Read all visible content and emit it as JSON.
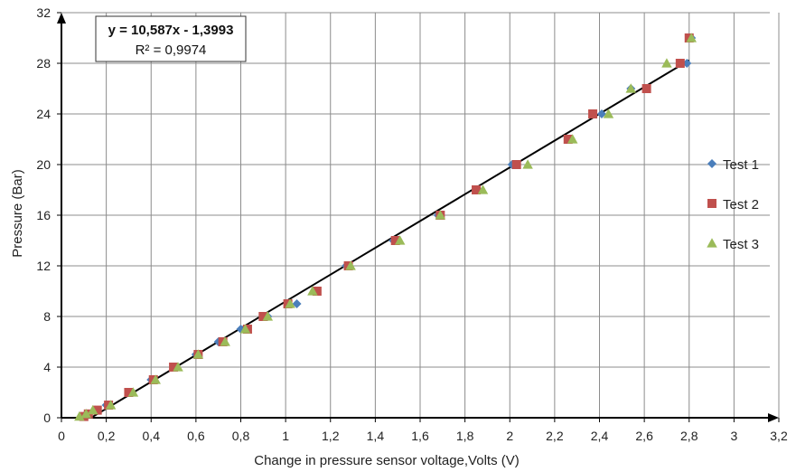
{
  "chart_data": {
    "type": "scatter",
    "title": "",
    "xlabel": "Change in pressure sensor voltage,Volts (V)",
    "ylabel": "Pressure (Bar)",
    "xlim": [
      0,
      3.2
    ],
    "ylim": [
      0,
      32
    ],
    "x_ticks": [
      0,
      0.2,
      0.4,
      0.6,
      0.8,
      1,
      1.2,
      1.4,
      1.6,
      1.8,
      2,
      2.2,
      2.4,
      2.6,
      2.8,
      3,
      3.2
    ],
    "x_tick_labels": [
      "0",
      "0,2",
      "0,4",
      "0,6",
      "0,8",
      "1",
      "1,2",
      "1,4",
      "1,6",
      "1,8",
      "2",
      "2,2",
      "2,4",
      "2,6",
      "2,8",
      "3",
      "3,2"
    ],
    "y_ticks": [
      0,
      4,
      8,
      12,
      16,
      20,
      24,
      28,
      32
    ],
    "y_tick_labels": [
      "0",
      "4",
      "8",
      "12",
      "16",
      "20",
      "24",
      "28",
      "32"
    ],
    "grid": true,
    "legend_position": "right",
    "series": [
      {
        "name": "Test 1",
        "marker": "diamond",
        "color": "#4a7ebb",
        "points": [
          [
            0.09,
            0.1
          ],
          [
            0.11,
            0.3
          ],
          [
            0.15,
            0.6
          ],
          [
            0.2,
            1
          ],
          [
            0.31,
            2
          ],
          [
            0.4,
            3
          ],
          [
            0.5,
            4
          ],
          [
            0.6,
            5
          ],
          [
            0.7,
            6
          ],
          [
            0.8,
            7
          ],
          [
            0.92,
            8
          ],
          [
            1.05,
            9
          ],
          [
            1.27,
            12
          ],
          [
            1.48,
            14
          ],
          [
            1.68,
            16
          ],
          [
            1.86,
            18
          ],
          [
            2.01,
            20
          ],
          [
            2.41,
            24
          ],
          [
            2.54,
            26
          ],
          [
            2.79,
            28
          ],
          [
            2.81,
            30
          ]
        ]
      },
      {
        "name": "Test 2",
        "marker": "square",
        "color": "#c0504d",
        "points": [
          [
            0.1,
            0.1
          ],
          [
            0.12,
            0.3
          ],
          [
            0.16,
            0.6
          ],
          [
            0.21,
            1
          ],
          [
            0.3,
            2
          ],
          [
            0.41,
            3
          ],
          [
            0.5,
            4
          ],
          [
            0.61,
            5
          ],
          [
            0.72,
            6
          ],
          [
            0.83,
            7
          ],
          [
            0.9,
            8
          ],
          [
            1.01,
            9
          ],
          [
            1.14,
            10
          ],
          [
            1.28,
            12
          ],
          [
            1.49,
            14
          ],
          [
            1.69,
            16
          ],
          [
            1.85,
            18
          ],
          [
            2.03,
            20
          ],
          [
            2.26,
            22
          ],
          [
            2.37,
            24
          ],
          [
            2.61,
            26
          ],
          [
            2.76,
            28
          ],
          [
            2.8,
            30
          ]
        ]
      },
      {
        "name": "Test 3",
        "marker": "triangle",
        "color": "#9bbb59",
        "points": [
          [
            0.08,
            0.1
          ],
          [
            0.11,
            0.3
          ],
          [
            0.14,
            0.6
          ],
          [
            0.22,
            1
          ],
          [
            0.32,
            2
          ],
          [
            0.42,
            3
          ],
          [
            0.52,
            4
          ],
          [
            0.61,
            5
          ],
          [
            0.73,
            6
          ],
          [
            0.82,
            7
          ],
          [
            0.92,
            8
          ],
          [
            1.02,
            9
          ],
          [
            1.12,
            10
          ],
          [
            1.29,
            12
          ],
          [
            1.51,
            14
          ],
          [
            1.69,
            16
          ],
          [
            1.88,
            18
          ],
          [
            2.08,
            20
          ],
          [
            2.28,
            22
          ],
          [
            2.44,
            24
          ],
          [
            2.54,
            26
          ],
          [
            2.7,
            28
          ],
          [
            2.81,
            30
          ]
        ]
      }
    ],
    "trendline": {
      "slope": 10.587,
      "intercept": -1.3993,
      "x_range": [
        0.13,
        2.8
      ],
      "color": "#000000",
      "equation_text": "y = 10,587x - 1,3993",
      "r2_text": "R² = 0,9974"
    }
  }
}
